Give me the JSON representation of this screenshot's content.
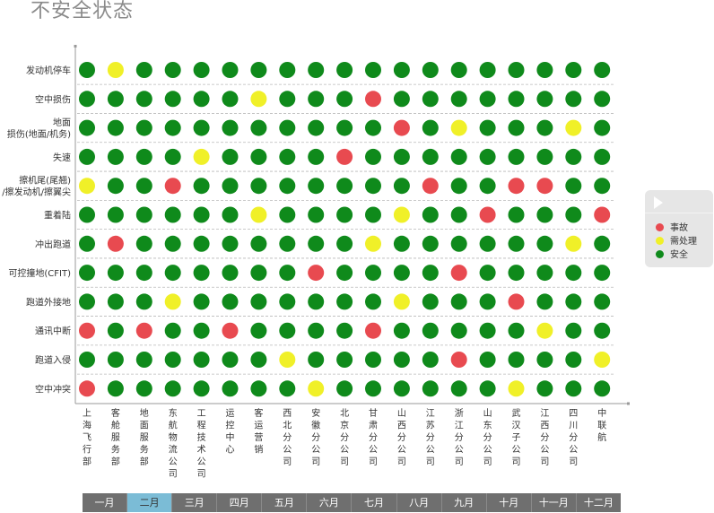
{
  "title": "不安全状态",
  "colors": {
    "accident": "#e84a50",
    "pending": "#f0f028",
    "safe": "#0f8a1b"
  },
  "legend": {
    "items": [
      {
        "label": "事故",
        "color": "#e84a50"
      },
      {
        "label": "需处理",
        "color": "#f0f028"
      },
      {
        "label": "安全",
        "color": "#0f8a1b"
      }
    ]
  },
  "timeline": {
    "months": [
      "一月",
      "二月",
      "三月",
      "四月",
      "五月",
      "六月",
      "七月",
      "八月",
      "九月",
      "十月",
      "十一月",
      "十二月"
    ],
    "active_index": 1
  },
  "chart_data": {
    "type": "heatmap",
    "title": "不安全状态",
    "value_legend": {
      "0": "安全",
      "1": "需处理",
      "2": "事故"
    },
    "rows": [
      [
        "发动机停车"
      ],
      [
        "空中损伤"
      ],
      [
        "地面",
        "损伤(地面/机务)"
      ],
      [
        "失速"
      ],
      [
        "擦机尾(尾翘)",
        "/擦发动机/擦翼尖"
      ],
      [
        "重着陆"
      ],
      [
        "冲出跑道"
      ],
      [
        "可控撞地(CFIT)"
      ],
      [
        "跑道外接地"
      ],
      [
        "通讯中断"
      ],
      [
        "跑道入侵"
      ],
      [
        "空中冲突"
      ]
    ],
    "columns": [
      "上海飞行部",
      "客舱服务部",
      "地面服务部",
      "东航物流公司",
      "工程技术公司",
      "运控中心",
      "客运营销",
      "西北分公司",
      "安徽分公司",
      "北京分公司",
      "甘肃分公司",
      "山西分公司",
      "江苏分公司",
      "浙江分公司",
      "山东分公司",
      "武汉子公司",
      "江西分公司",
      "四川分公司",
      "中联航"
    ],
    "values": [
      [
        0,
        1,
        0,
        0,
        0,
        0,
        0,
        0,
        0,
        0,
        0,
        0,
        0,
        0,
        0,
        0,
        0,
        0,
        0
      ],
      [
        0,
        0,
        0,
        0,
        0,
        0,
        1,
        0,
        0,
        0,
        2,
        0,
        0,
        0,
        0,
        0,
        0,
        0,
        0
      ],
      [
        0,
        0,
        0,
        0,
        0,
        0,
        0,
        0,
        0,
        0,
        0,
        2,
        0,
        1,
        0,
        0,
        0,
        1,
        0
      ],
      [
        0,
        0,
        0,
        0,
        1,
        0,
        0,
        0,
        0,
        2,
        0,
        0,
        0,
        0,
        0,
        0,
        0,
        0,
        0
      ],
      [
        1,
        0,
        0,
        2,
        0,
        0,
        0,
        0,
        0,
        0,
        0,
        0,
        2,
        0,
        0,
        2,
        2,
        0,
        0
      ],
      [
        0,
        0,
        0,
        0,
        0,
        0,
        1,
        0,
        0,
        0,
        0,
        1,
        0,
        0,
        2,
        0,
        0,
        0,
        2
      ],
      [
        0,
        2,
        0,
        0,
        0,
        0,
        0,
        0,
        0,
        0,
        1,
        0,
        0,
        0,
        0,
        0,
        0,
        1,
        0
      ],
      [
        0,
        0,
        0,
        0,
        0,
        0,
        0,
        0,
        2,
        0,
        0,
        0,
        0,
        2,
        0,
        0,
        0,
        0,
        0
      ],
      [
        0,
        0,
        0,
        1,
        0,
        0,
        0,
        0,
        0,
        0,
        0,
        1,
        0,
        0,
        0,
        2,
        0,
        0,
        0
      ],
      [
        2,
        0,
        2,
        0,
        0,
        2,
        0,
        0,
        0,
        0,
        2,
        0,
        0,
        0,
        0,
        0,
        1,
        0,
        0
      ],
      [
        0,
        0,
        0,
        0,
        0,
        0,
        0,
        1,
        0,
        0,
        0,
        0,
        0,
        2,
        0,
        0,
        0,
        0,
        1
      ],
      [
        2,
        0,
        0,
        0,
        0,
        0,
        0,
        0,
        1,
        0,
        0,
        0,
        0,
        0,
        0,
        1,
        0,
        0,
        0
      ]
    ]
  }
}
